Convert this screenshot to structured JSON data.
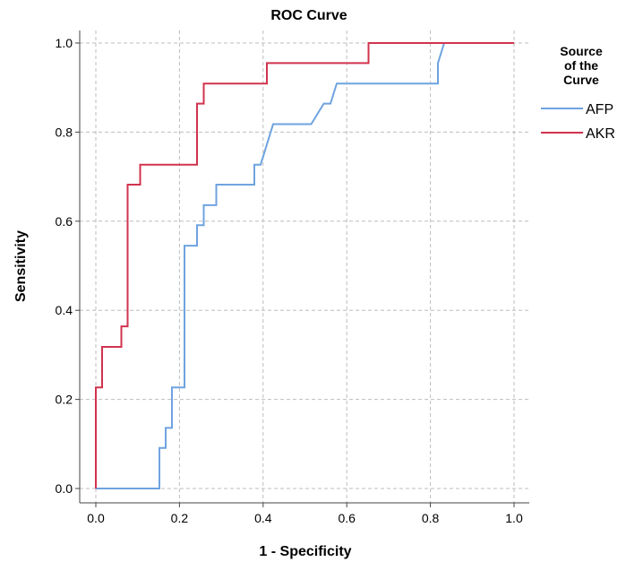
{
  "chart_data": {
    "type": "line",
    "title": "ROC Curve",
    "xlabel": "1 - Specificity",
    "ylabel": "Sensitivity",
    "xlim": [
      0,
      1
    ],
    "ylim": [
      0,
      1
    ],
    "xticks": [
      "0.0",
      "0.2",
      "0.4",
      "0.6",
      "0.8",
      "1.0"
    ],
    "yticks": [
      "0.0",
      "0.2",
      "0.4",
      "0.6",
      "0.8",
      "1.0"
    ],
    "grid": true,
    "legend": {
      "title_lines": [
        "Source",
        "of the",
        "Curve"
      ],
      "placement": "right"
    },
    "series": [
      {
        "name": "AFP",
        "color": "#6fa3e0",
        "points": [
          [
            0.0,
            0.0
          ],
          [
            0.152,
            0.0
          ],
          [
            0.152,
            0.091
          ],
          [
            0.167,
            0.091
          ],
          [
            0.167,
            0.136
          ],
          [
            0.182,
            0.136
          ],
          [
            0.182,
            0.227
          ],
          [
            0.212,
            0.227
          ],
          [
            0.212,
            0.545
          ],
          [
            0.242,
            0.545
          ],
          [
            0.242,
            0.591
          ],
          [
            0.258,
            0.591
          ],
          [
            0.258,
            0.636
          ],
          [
            0.288,
            0.636
          ],
          [
            0.288,
            0.682
          ],
          [
            0.379,
            0.682
          ],
          [
            0.379,
            0.727
          ],
          [
            0.394,
            0.727
          ],
          [
            0.424,
            0.818
          ],
          [
            0.515,
            0.818
          ],
          [
            0.545,
            0.864
          ],
          [
            0.561,
            0.864
          ],
          [
            0.576,
            0.909
          ],
          [
            0.818,
            0.909
          ],
          [
            0.818,
            0.955
          ],
          [
            0.833,
            1.0
          ],
          [
            1.0,
            1.0
          ]
        ]
      },
      {
        "name": "AKR",
        "color": "#d1334e",
        "points": [
          [
            0.0,
            0.0
          ],
          [
            0.0,
            0.227
          ],
          [
            0.015,
            0.227
          ],
          [
            0.015,
            0.318
          ],
          [
            0.061,
            0.318
          ],
          [
            0.061,
            0.364
          ],
          [
            0.076,
            0.364
          ],
          [
            0.076,
            0.682
          ],
          [
            0.106,
            0.682
          ],
          [
            0.106,
            0.727
          ],
          [
            0.242,
            0.727
          ],
          [
            0.242,
            0.864
          ],
          [
            0.258,
            0.864
          ],
          [
            0.258,
            0.909
          ],
          [
            0.409,
            0.909
          ],
          [
            0.409,
            0.955
          ],
          [
            0.652,
            0.955
          ],
          [
            0.652,
            1.0
          ],
          [
            1.0,
            1.0
          ]
        ]
      }
    ]
  }
}
